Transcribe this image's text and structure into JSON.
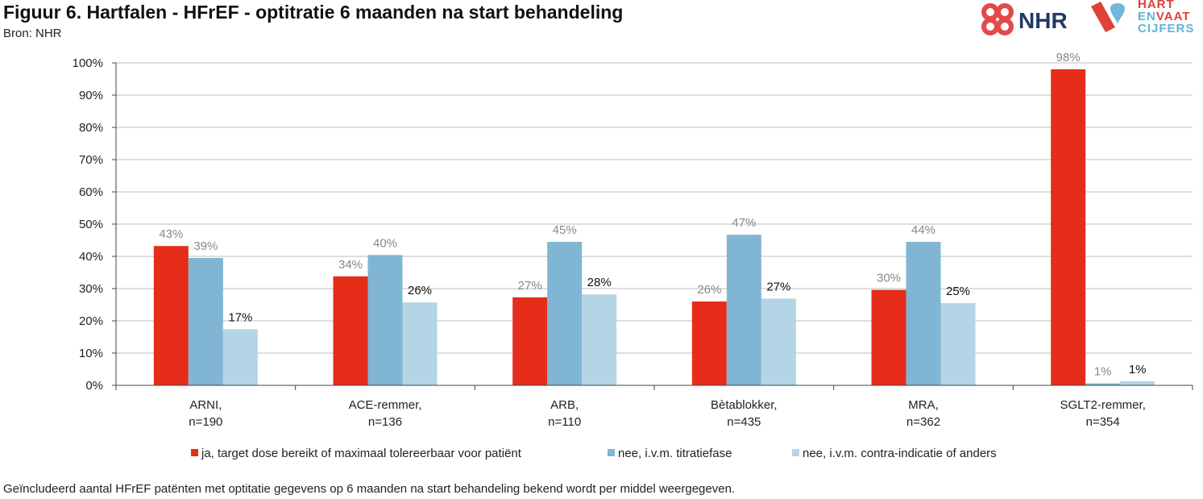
{
  "header": {
    "title": "Figuur 6. Hartfalen - HFrEF - optitratie 6 maanden na start behandeling",
    "source": "Bron: NHR"
  },
  "logos": {
    "nhr_text": "NHR",
    "hartenvaat": [
      "HART",
      "EN",
      "VAAT",
      "CIJFERS"
    ]
  },
  "footnote": "Geïncludeerd aantal HFrEF patënten met optitatie gegevens op 6 maanden na start behandeling bekend wordt per middel weergegeven.",
  "chart_data": {
    "type": "bar",
    "title": "Figuur 6. Hartfalen - HFrEF - optitratie 6 maanden na start behandeling",
    "xlabel": "",
    "ylabel": "",
    "ylim": [
      0,
      100
    ],
    "y_ticks": [
      "0%",
      "10%",
      "20%",
      "30%",
      "40%",
      "50%",
      "60%",
      "70%",
      "80%",
      "90%",
      "100%"
    ],
    "grid": true,
    "legend_position": "bottom",
    "categories": [
      [
        "ARNI,",
        "n=190"
      ],
      [
        "ACE-remmer,",
        "n=136"
      ],
      [
        "ARB,",
        "n=110"
      ],
      [
        "Bètablokker,",
        "n=435"
      ],
      [
        "MRA,",
        "n=362"
      ],
      [
        "SGLT2-remmer,",
        "n=354"
      ]
    ],
    "series": [
      {
        "name": "ja, target dose bereikt of maximaal tolereerbaar voor patiënt",
        "color": "#e52d1a",
        "label_color": "#888888",
        "values": [
          43.2,
          33.8,
          27.3,
          26.0,
          29.6,
          98.0
        ],
        "labels": [
          "43%",
          "34%",
          "27%",
          "26%",
          "30%",
          "98%"
        ]
      },
      {
        "name": "nee, i.v.m. titratiefase",
        "color": "#80b6d3",
        "label_color": "#888888",
        "values": [
          39.5,
          40.4,
          44.5,
          46.7,
          44.5,
          0.6
        ],
        "labels": [
          "39%",
          "40%",
          "45%",
          "47%",
          "44%",
          "1%"
        ]
      },
      {
        "name": "nee, i.v.m. contra-indicatie of anders",
        "color": "#b3d5e6",
        "label_color": "#111111",
        "values": [
          17.4,
          25.7,
          28.2,
          26.9,
          25.5,
          1.3
        ],
        "labels": [
          "17%",
          "26%",
          "28%",
          "27%",
          "25%",
          "1%"
        ]
      }
    ]
  }
}
